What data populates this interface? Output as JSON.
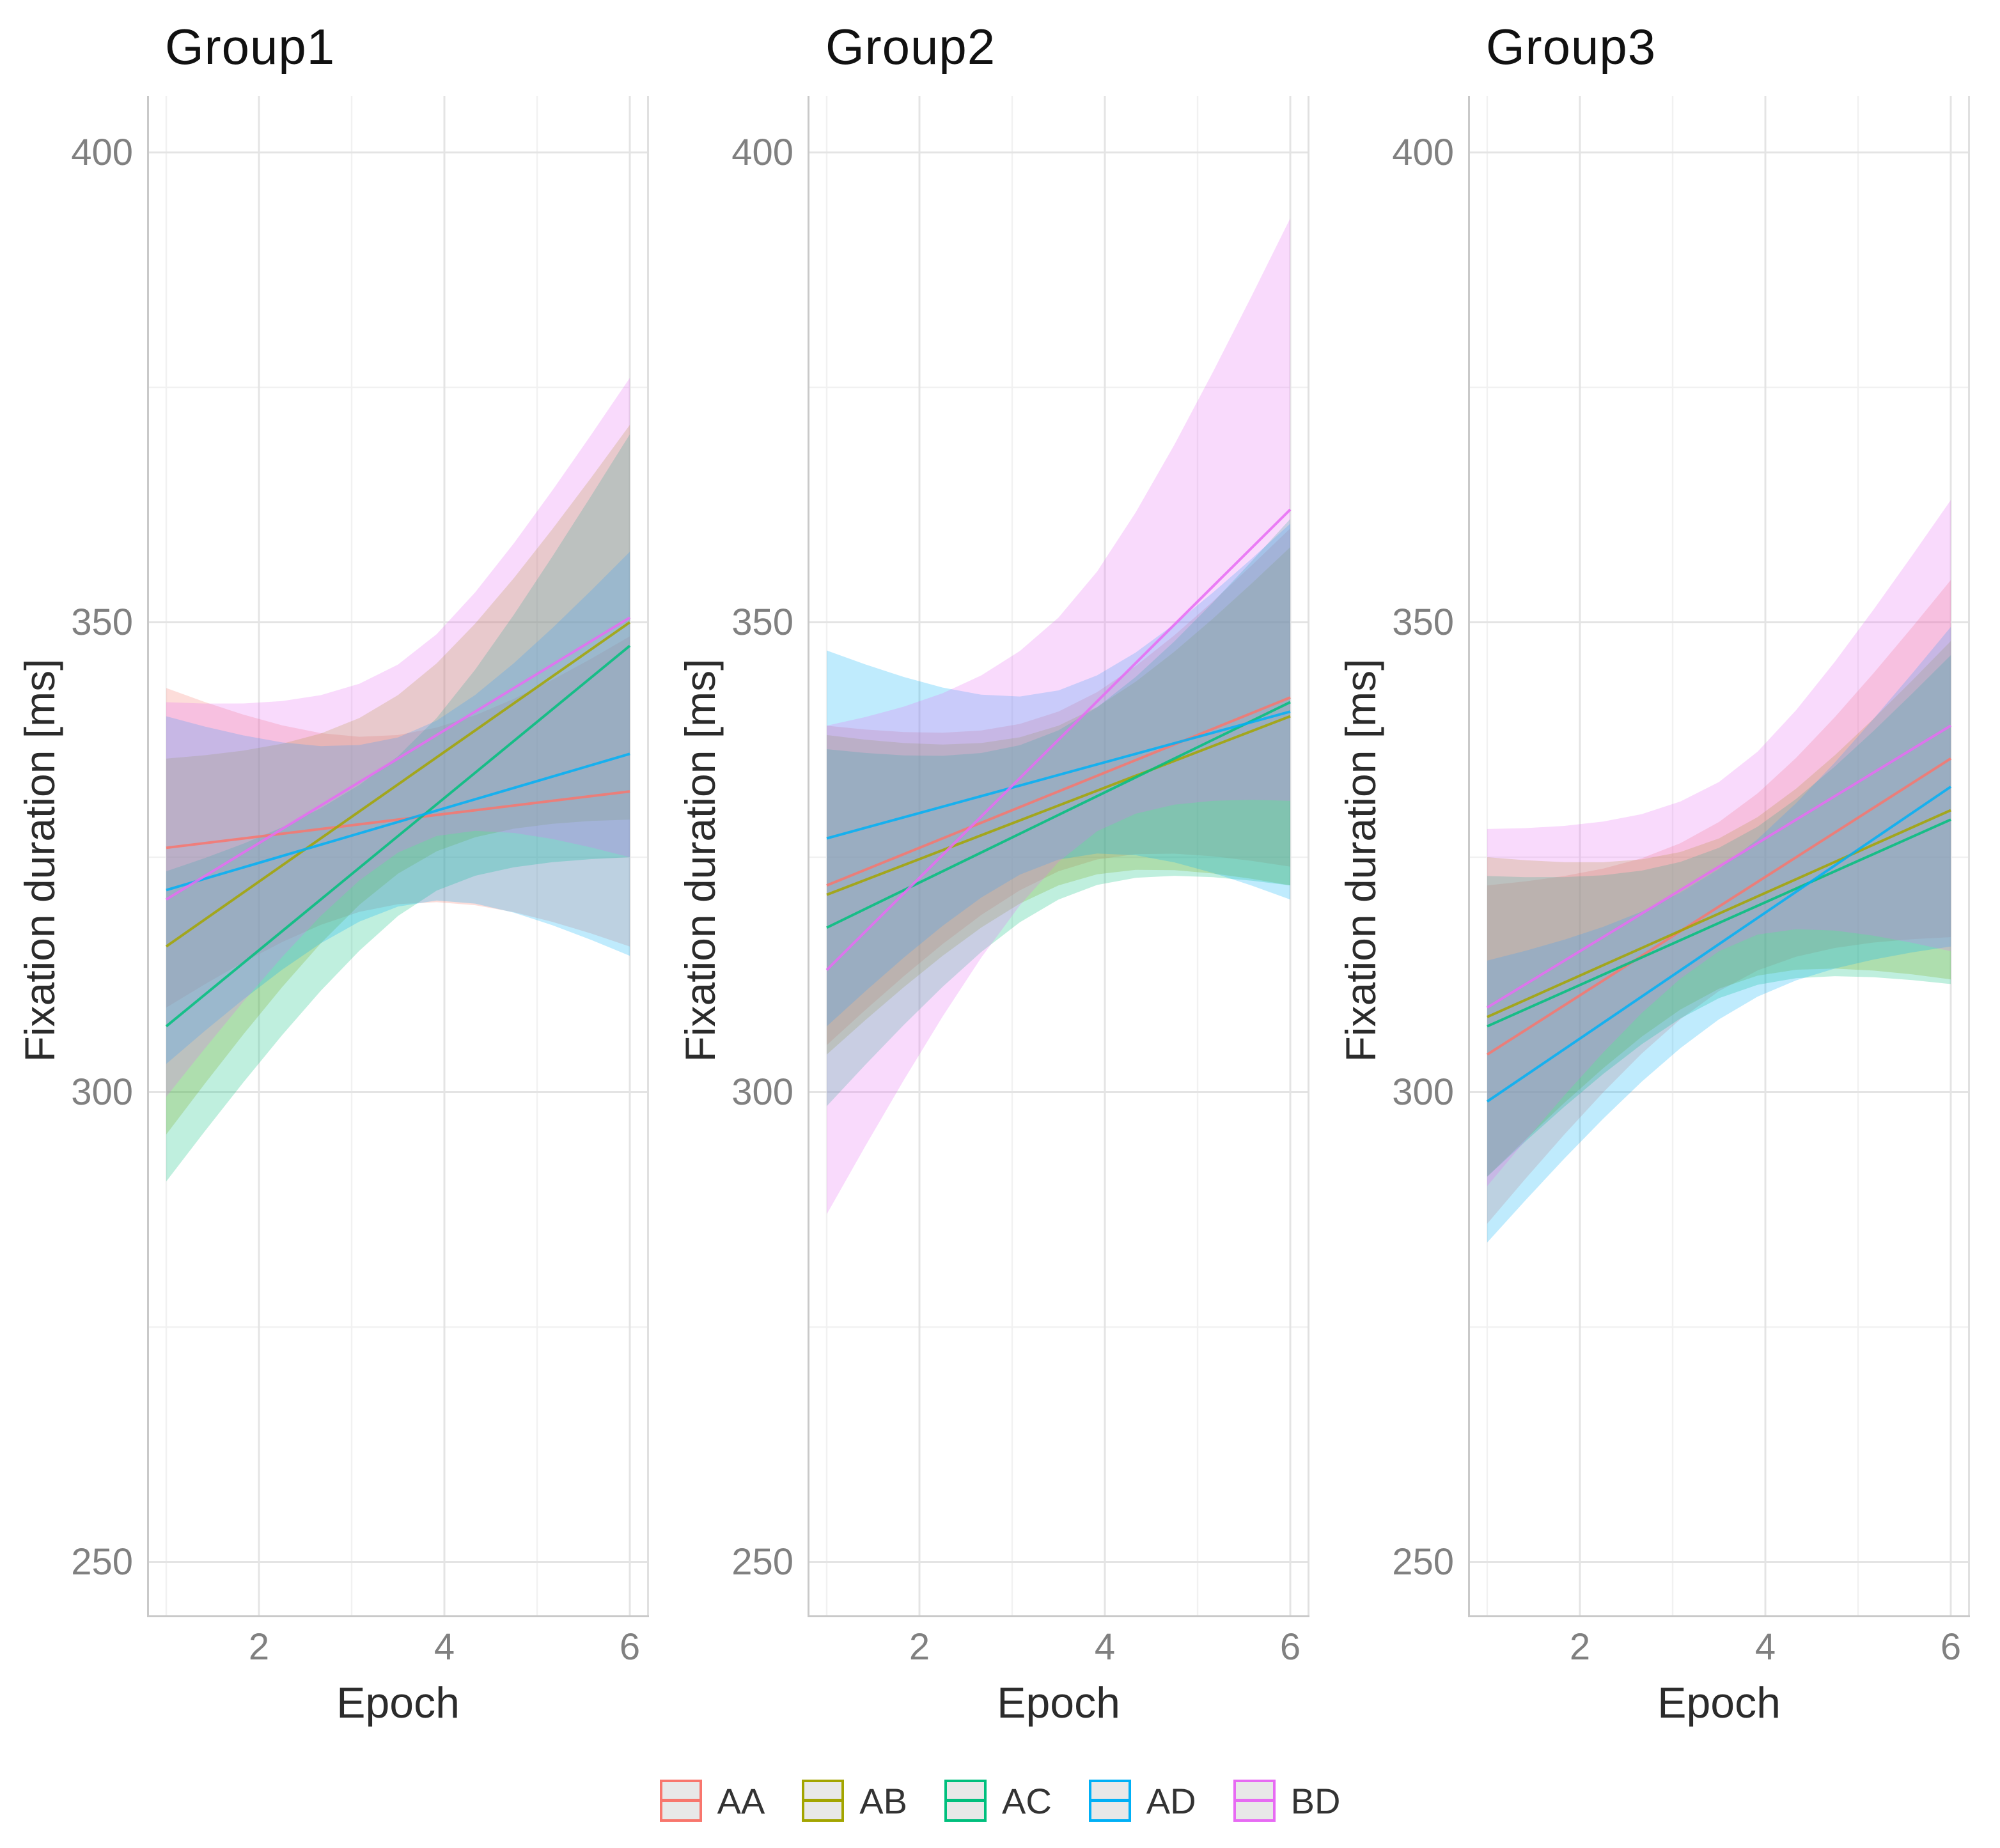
{
  "axes": {
    "x_label": "Epoch",
    "y_label": "Fixation duration [ms]",
    "x_ticks": [
      2,
      4,
      6
    ],
    "x_minor": [
      1,
      3,
      5
    ],
    "y_ticks": [
      400,
      350,
      300,
      250
    ],
    "y_minor": [
      375,
      325,
      275
    ],
    "x_range": [
      0.79,
      6.21
    ],
    "y_range": [
      244,
      406
    ]
  },
  "legend": {
    "items": [
      {
        "label": "AA",
        "color": "#F8766D"
      },
      {
        "label": "AB",
        "color": "#A3A500"
      },
      {
        "label": "AC",
        "color": "#00BF7D"
      },
      {
        "label": "AD",
        "color": "#00B0F6"
      },
      {
        "label": "BD",
        "color": "#E76BF3"
      }
    ]
  },
  "style": {
    "ribbon_opacity": 0.25,
    "line_opacity": 0.85,
    "grid_major_color": "#e4e4e4",
    "grid_minor_color": "#f1f1f1",
    "panel_border_color": "#c9c9c9",
    "tick_label_color": "#808080"
  },
  "chart_data": {
    "type": "line",
    "x": [
      1,
      6
    ],
    "note": "linear fits with confidence ribbons; ci values are half-widths in ms at x=1, x=3.5, x=6",
    "facets": [
      {
        "title": "Group1",
        "series": [
          {
            "name": "AA",
            "y": [
              326.0,
              332.0
            ],
            "ci": [
              17.0,
              9.0,
              16.5
            ]
          },
          {
            "name": "AB",
            "y": [
              315.5,
              350.0
            ],
            "ci": [
              20.0,
              9.5,
              21.0
            ]
          },
          {
            "name": "AC",
            "y": [
              307.0,
              347.5
            ],
            "ci": [
              16.5,
              8.5,
              22.5
            ]
          },
          {
            "name": "AD",
            "y": [
              321.5,
              336.0
            ],
            "ci": [
              18.5,
              9.0,
              21.5
            ]
          },
          {
            "name": "BD",
            "y": [
              320.5,
              350.5
            ],
            "ci": [
              21.0,
              10.0,
              25.5
            ]
          }
        ]
      },
      {
        "title": "Group2",
        "series": [
          {
            "name": "AA",
            "y": [
              322.0,
              342.0
            ],
            "ci": [
              17.0,
              8.5,
              18.0
            ]
          },
          {
            "name": "AB",
            "y": [
              321.0,
              340.0
            ],
            "ci": [
              17.0,
              8.5,
              18.0
            ]
          },
          {
            "name": "AC",
            "y": [
              317.5,
              341.5
            ],
            "ci": [
              19.0,
              9.0,
              19.5
            ]
          },
          {
            "name": "AD",
            "y": [
              327.0,
              340.5
            ],
            "ci": [
              20.0,
              9.0,
              20.0
            ]
          },
          {
            "name": "BD",
            "y": [
              313.0,
              362.0
            ],
            "ci": [
              26.0,
              13.0,
              31.0
            ]
          }
        ]
      },
      {
        "title": "Group3",
        "series": [
          {
            "name": "AA",
            "y": [
              304.0,
              335.5
            ],
            "ci": [
              18.0,
              9.0,
              19.0
            ]
          },
          {
            "name": "AB",
            "y": [
              308.0,
              330.0
            ],
            "ci": [
              17.0,
              8.0,
              18.0
            ]
          },
          {
            "name": "AC",
            "y": [
              307.0,
              329.0
            ],
            "ci": [
              16.0,
              8.0,
              17.5
            ]
          },
          {
            "name": "AD",
            "y": [
              299.0,
              332.5
            ],
            "ci": [
              15.0,
              8.0,
              17.0
            ]
          },
          {
            "name": "BD",
            "y": [
              309.0,
              339.0
            ],
            "ci": [
              19.0,
              9.0,
              24.0
            ]
          }
        ]
      }
    ]
  }
}
